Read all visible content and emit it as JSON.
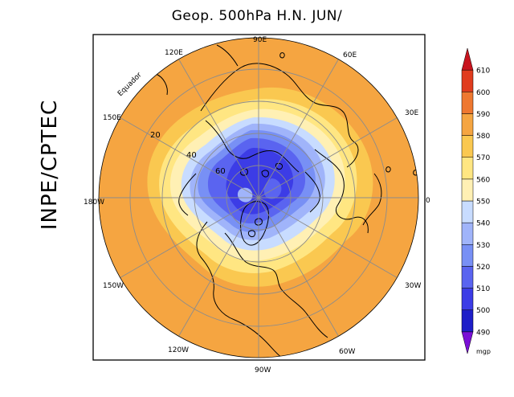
{
  "title": "Geop. 500hPa H.N. JUN/",
  "side_label": "INPE/CPTEC",
  "equator_label": "Equador",
  "lon_labels": [
    "90E",
    "60E",
    "30E",
    "0",
    "30W",
    "60W",
    "90W",
    "120W",
    "150W",
    "180W",
    "150E",
    "120E"
  ],
  "lat_labels": [
    "20",
    "40",
    "60"
  ],
  "legend": {
    "unit": "mgp",
    "levels": [
      "490",
      "500",
      "510",
      "520",
      "530",
      "540",
      "550",
      "560",
      "570",
      "580",
      "590",
      "600",
      "610"
    ],
    "colors": [
      "#7a0fd6",
      "#1e1ec8",
      "#3c3ce6",
      "#5a64f0",
      "#7890f5",
      "#a0b4fa",
      "#c8dcff",
      "#fff0b4",
      "#ffe682",
      "#fac850",
      "#f5a541",
      "#ee7830",
      "#e03c1e",
      "#c8141e"
    ]
  },
  "colors": {
    "ocean_fill": "#f5a541",
    "grid": "#8c8c8c",
    "coast": "#000000"
  }
}
